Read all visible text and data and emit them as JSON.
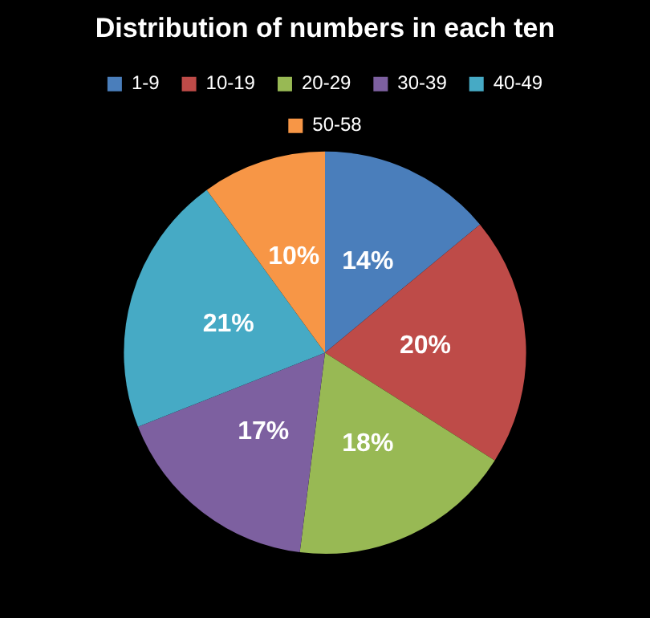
{
  "chart_data": {
    "type": "pie",
    "title": "Distribution of numbers in each ten",
    "categories": [
      "1-9",
      "10-19",
      "20-29",
      "30-39",
      "40-49",
      "50-58"
    ],
    "values": [
      14,
      20,
      18,
      17,
      21,
      10
    ],
    "value_labels": [
      "14%",
      "20%",
      "18%",
      "17%",
      "21%",
      "10%"
    ],
    "colors": [
      "#4a7ebb",
      "#be4b48",
      "#98b954",
      "#7d60a0",
      "#46aac5",
      "#f79646"
    ],
    "legend": "top"
  }
}
